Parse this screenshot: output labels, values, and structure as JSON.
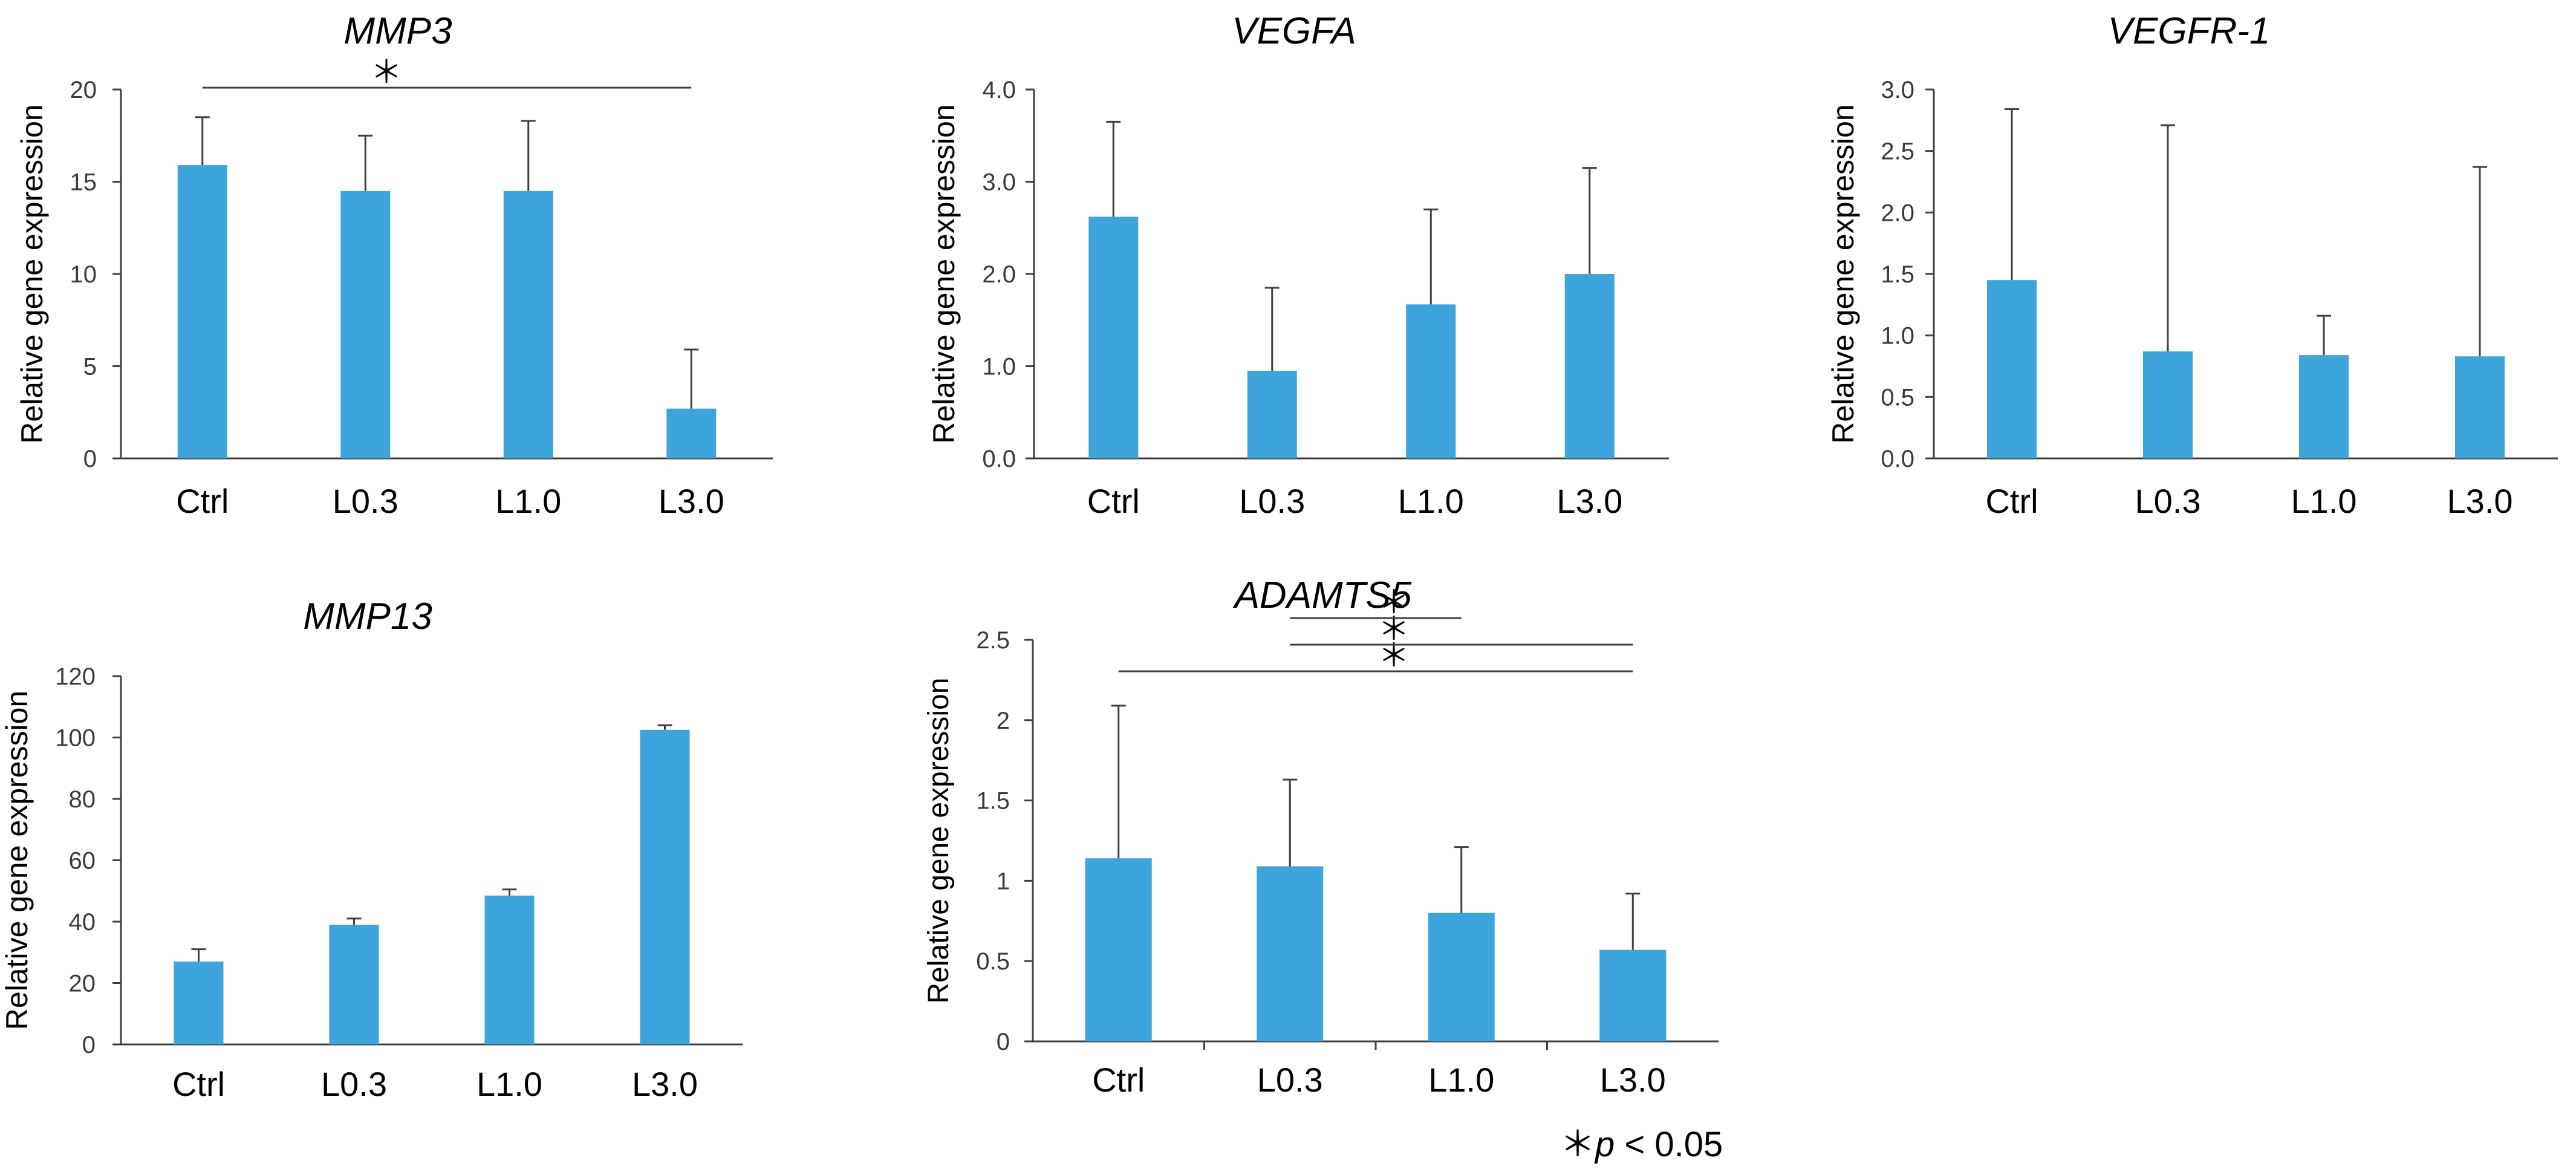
{
  "colors": {
    "bar": "#3DA5DB",
    "axis": "#404040",
    "text": "#000000",
    "tick": "#3a3a3a"
  },
  "footnote": {
    "star": "＊",
    "p": "p",
    "rest": " < 0.05"
  },
  "chart_data": [
    {
      "id": "mmp3",
      "type": "bar",
      "title": "MMP3",
      "title_italic": true,
      "ylabel": "Relative gene expression",
      "xlabel": "",
      "categories": [
        "Ctrl",
        "L0.3",
        "L1.0",
        "L3.0"
      ],
      "values": [
        15.9,
        14.5,
        14.5,
        2.7
      ],
      "errors": [
        2.6,
        3.0,
        3.8,
        3.2
      ],
      "ylim": [
        0,
        20
      ],
      "yticks": [
        "0",
        "5",
        "10",
        "15",
        "20"
      ],
      "category_ticks": false,
      "significance": [
        {
          "from": 0,
          "to": 3,
          "label": "＊"
        }
      ]
    },
    {
      "id": "vegfa",
      "type": "bar",
      "title": "VEGFA",
      "title_italic": true,
      "ylabel": "Relative gene expression",
      "xlabel": "",
      "categories": [
        "Ctrl",
        "L0.3",
        "L1.0",
        "L3.0"
      ],
      "values": [
        2.62,
        0.95,
        1.67,
        2.0
      ],
      "errors": [
        1.03,
        0.9,
        1.03,
        1.15
      ],
      "ylim": [
        0,
        4
      ],
      "yticks": [
        "0.0",
        "1.0",
        "2.0",
        "3.0",
        "4.0"
      ],
      "category_ticks": false,
      "significance": []
    },
    {
      "id": "vegfr1",
      "type": "bar",
      "title": "VEGFR-1",
      "title_italic": true,
      "ylabel": "Relative gene expression",
      "xlabel": "",
      "categories": [
        "Ctrl",
        "L0.3",
        "L1.0",
        "L3.0"
      ],
      "values": [
        1.45,
        0.87,
        0.84,
        0.83
      ],
      "errors": [
        1.39,
        1.84,
        0.32,
        1.54
      ],
      "ylim": [
        0,
        3
      ],
      "yticks": [
        "0.0",
        "0.5",
        "1.0",
        "1.5",
        "2.0",
        "2.5",
        "3.0"
      ],
      "category_ticks": false,
      "significance": []
    },
    {
      "id": "mmp13",
      "type": "bar",
      "title": "MMP13",
      "title_italic": true,
      "ylabel": "Relative gene expression",
      "xlabel": "",
      "categories": [
        "Ctrl",
        "L0.3",
        "L1.0",
        "L3.0"
      ],
      "values": [
        27,
        39,
        48.5,
        102.5
      ],
      "errors": [
        4,
        2,
        2,
        1.5
      ],
      "ylim": [
        0,
        120
      ],
      "yticks": [
        "0",
        "20",
        "40",
        "60",
        "80",
        "100",
        "120"
      ],
      "category_ticks": false,
      "significance": []
    },
    {
      "id": "adamts5",
      "type": "bar",
      "title": "ADAMTS5",
      "title_italic": true,
      "ylabel": "Relative gene expression",
      "xlabel": "",
      "categories": [
        "Ctrl",
        "L0.3",
        "L1.0",
        "L3.0"
      ],
      "values": [
        1.14,
        1.09,
        0.8,
        0.57
      ],
      "errors": [
        0.95,
        0.54,
        0.41,
        0.35
      ],
      "ylim": [
        0,
        2.5
      ],
      "yticks": [
        "0",
        "0.5",
        "1",
        "1.5",
        "2",
        "2.5"
      ],
      "category_ticks": true,
      "significance": [
        {
          "from": 0,
          "to": 3,
          "label": "＊"
        },
        {
          "from": 1,
          "to": 3,
          "label": "＊"
        },
        {
          "from": 1,
          "to": 2,
          "label": "＊"
        }
      ]
    }
  ]
}
